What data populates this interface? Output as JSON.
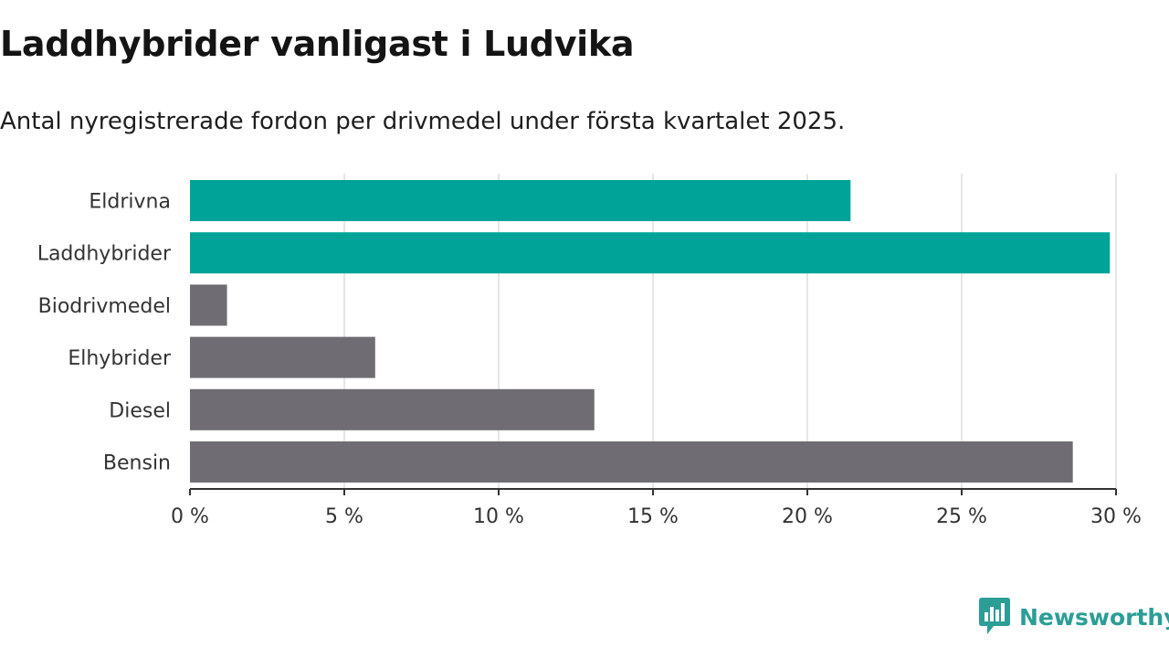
{
  "title": "Laddhybrider vanligast i Ludvika",
  "subtitle": "Antal nyregistrerade fordon per drivmedel under första kvartalet 2025.",
  "brand": {
    "name": "Newsworthy",
    "icon": "newsworthy-logo-icon",
    "color": "#2b9e96"
  },
  "colors": {
    "highlight": "#00a398",
    "default": "#6f6d73",
    "grid": "#dddddd",
    "axis": "#333333"
  },
  "chart_data": {
    "type": "bar",
    "orientation": "horizontal",
    "categories": [
      "Eldrivna",
      "Laddhybrider",
      "Biodrivmedel",
      "Elhybrider",
      "Diesel",
      "Bensin"
    ],
    "values": [
      21.4,
      29.8,
      1.2,
      6.0,
      13.1,
      28.6
    ],
    "highlighted": [
      true,
      true,
      false,
      false,
      false,
      false
    ],
    "unit": "%",
    "xlim": [
      0,
      30
    ],
    "xticks": [
      0,
      5,
      10,
      15,
      20,
      25,
      30
    ],
    "xtick_labels": [
      "0 %",
      "5 %",
      "10 %",
      "15 %",
      "20 %",
      "25 %",
      "30 %"
    ],
    "grid": true
  }
}
